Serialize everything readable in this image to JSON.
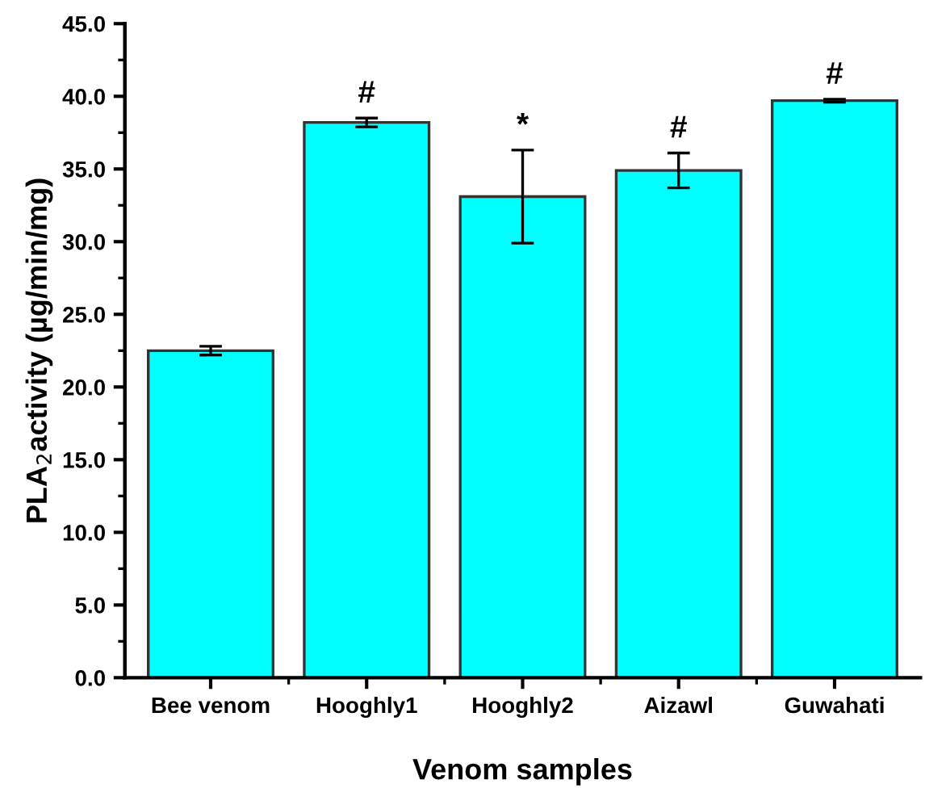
{
  "chart_data": {
    "type": "bar",
    "xlabel": "Venom samples",
    "ylabel": "PLA$_{2}$activity (µg/min/mg)",
    "categories": [
      "Bee venom",
      "Hooghly1",
      "Hooghly2",
      "Aizawl",
      "Guwahati"
    ],
    "values": [
      22.5,
      38.2,
      33.1,
      34.9,
      39.7
    ],
    "errors": [
      0.3,
      0.3,
      3.2,
      1.2,
      0.1
    ],
    "color": "#00ffff",
    "ylim": [
      0,
      45
    ],
    "yticks": [
      {
        "value": 0,
        "label": "0.0"
      },
      {
        "value": 5,
        "label": "5.0"
      },
      {
        "value": 10,
        "label": "10.0"
      },
      {
        "value": 15,
        "label": "15.0"
      },
      {
        "value": 20,
        "label": "20.0"
      },
      {
        "value": 25,
        "label": "25.0"
      },
      {
        "value": 30,
        "label": "30.0"
      },
      {
        "value": 35,
        "label": "35.0"
      },
      {
        "value": 40,
        "label": "40.0"
      },
      {
        "value": 45,
        "label": "45.0"
      }
    ],
    "annotations": [
      {
        "text": "#",
        "x": "Hooghly1",
        "y": 38.5
      },
      {
        "text": "*",
        "x": "Hooghly2",
        "y": 36.3
      },
      {
        "text": "#",
        "x": "Aizawl",
        "y": 36.1
      },
      {
        "text": "#",
        "x": "Guwahati",
        "y": 39.8
      }
    ],
    "grid": false
  }
}
